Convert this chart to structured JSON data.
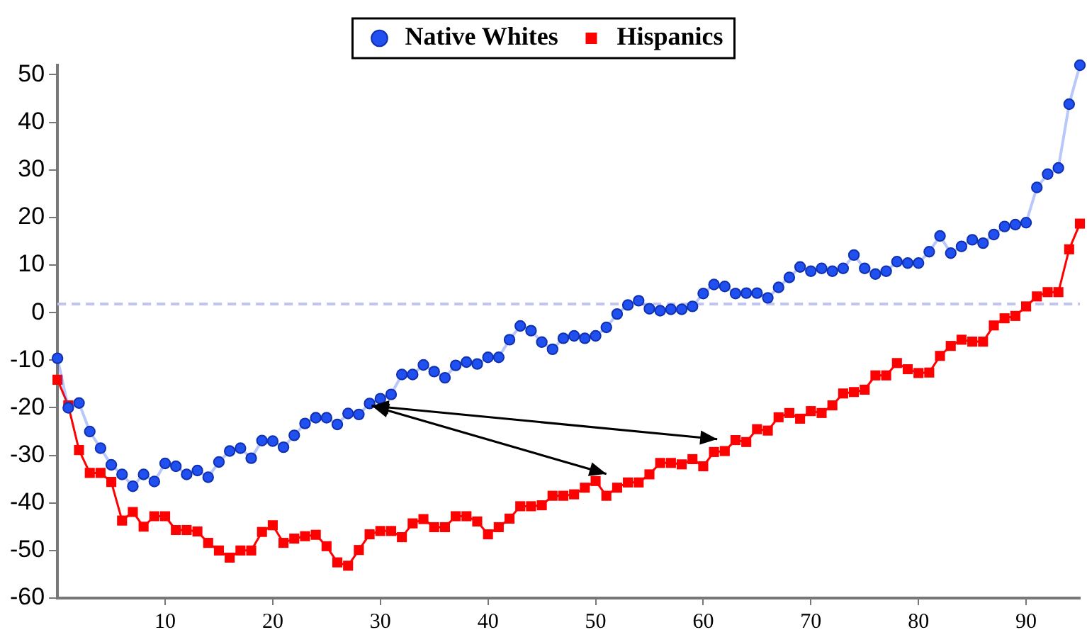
{
  "chart_data": {
    "type": "line",
    "x": [
      0,
      1,
      2,
      3,
      4,
      5,
      6,
      7,
      8,
      9,
      10,
      11,
      12,
      13,
      14,
      15,
      16,
      17,
      18,
      19,
      20,
      21,
      22,
      23,
      24,
      25,
      26,
      27,
      28,
      29,
      30,
      31,
      32,
      33,
      34,
      35,
      36,
      37,
      38,
      39,
      40,
      41,
      42,
      43,
      44,
      45,
      46,
      47,
      48,
      49,
      50,
      51,
      52,
      53,
      54,
      55,
      56,
      57,
      58,
      59,
      60,
      61,
      62,
      63,
      64,
      65,
      66,
      67,
      68,
      69,
      70,
      71,
      72,
      73,
      74,
      75,
      76,
      77,
      78,
      79,
      80,
      81,
      82,
      83,
      84,
      85,
      86,
      87,
      88,
      89,
      90,
      91,
      92,
      93,
      94,
      95
    ],
    "series": [
      {
        "name": "Native Whites",
        "color": "#2050f0",
        "marker": "circle",
        "values": [
          -9.6,
          -20,
          -19,
          -25,
          -28.5,
          -32,
          -34,
          -36.5,
          -34,
          -35.5,
          -31.7,
          -32.3,
          -34,
          -33.2,
          -34.6,
          -31.4,
          -29.1,
          -28.5,
          -30.6,
          -26.9,
          -27,
          -28.3,
          -25.8,
          -23.3,
          -22.1,
          -22.1,
          -23.5,
          -21.2,
          -21.4,
          -19.1,
          -18.1,
          -17.2,
          -13,
          -13,
          -11,
          -12.4,
          -13.7,
          -11.1,
          -10.4,
          -10.8,
          -9.4,
          -9.4,
          -5.7,
          -2.8,
          -3.8,
          -6.2,
          -7.7,
          -5.4,
          -4.9,
          -5.4,
          -4.9,
          -3.1,
          -0.3,
          1.6,
          2.5,
          0.8,
          0.4,
          0.7,
          0.7,
          1.3,
          4,
          5.9,
          5.5,
          4,
          4.1,
          4.1,
          3.1,
          5.3,
          7.4,
          9.6,
          8.7,
          9.3,
          8.7,
          9.3,
          12.1,
          9.3,
          8.1,
          8.7,
          10.7,
          10.4,
          10.4,
          12.8,
          16.1,
          12.5,
          13.9,
          15.3,
          14.6,
          16.4,
          18.1,
          18.5,
          18.9,
          26.3,
          29.1,
          30.4,
          43.8,
          52
        ]
      },
      {
        "name": "Hispanics",
        "color": "#ff0000",
        "marker": "square",
        "values": [
          -14.1,
          -19.5,
          -28.9,
          -33.7,
          -33.7,
          -35.6,
          -43.7,
          -41.9,
          -45,
          -42.8,
          -42.8,
          -45.7,
          -45.7,
          -46,
          -48.4,
          -50,
          -51.5,
          -50,
          -50,
          -46.1,
          -44.7,
          -48.4,
          -47.5,
          -47,
          -46.7,
          -49.1,
          -52.5,
          -53.2,
          -49.9,
          -46.6,
          -45.9,
          -45.9,
          -47.2,
          -44.3,
          -43.4,
          -45.1,
          -45.1,
          -42.8,
          -42.8,
          -43.9,
          -46.6,
          -45.1,
          -43.3,
          -40.7,
          -40.7,
          -40.5,
          -38.5,
          -38.5,
          -38.2,
          -36.8,
          -35.4,
          -38.5,
          -36.8,
          -35.7,
          -35.7,
          -34,
          -31.6,
          -31.6,
          -31.9,
          -30.8,
          -32.3,
          -29.3,
          -29.1,
          -26.8,
          -27.2,
          -24.5,
          -24.8,
          -22,
          -21.1,
          -22.3,
          -20.7,
          -21.1,
          -19.5,
          -17,
          -16.7,
          -16.2,
          -13.2,
          -13.2,
          -10.6,
          -11.9,
          -12.7,
          -12.6,
          -9.1,
          -7,
          -5.7,
          -6.1,
          -6.1,
          -2.7,
          -1.2,
          -0.7,
          1.3,
          3.4,
          4.3,
          4.3,
          13.3,
          18.7
        ]
      }
    ],
    "xlim": [
      0,
      95
    ],
    "xticks": [
      10,
      20,
      30,
      40,
      50,
      60,
      70,
      80,
      90
    ],
    "ylim": [
      -60,
      52
    ],
    "yticks": [
      -60,
      -50,
      -40,
      -30,
      -20,
      -10,
      0,
      10,
      20,
      30,
      40,
      50
    ],
    "ref_lines": [
      {
        "axis": "y",
        "value": 1.8,
        "color": "#c0c4f4",
        "line_style": "dashed"
      }
    ],
    "grid": false,
    "legend": "top",
    "line_style": "solid"
  }
}
